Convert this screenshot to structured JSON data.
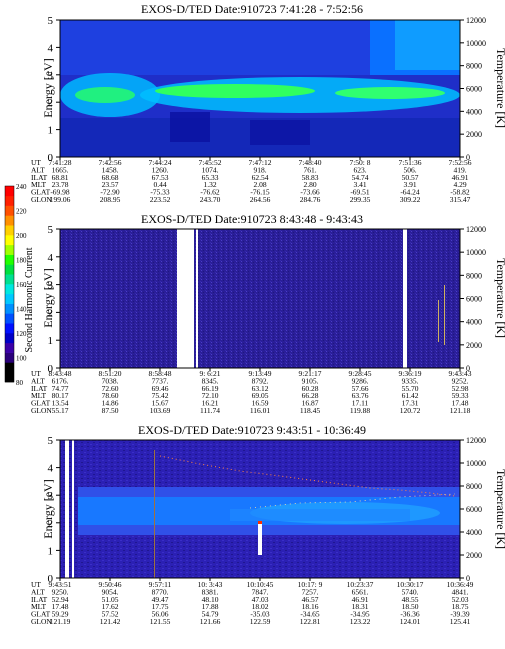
{
  "colors": {
    "colorbar": [
      "#000000",
      "#000000",
      "#2a007a",
      "#3a00a8",
      "#0000c8",
      "#0010ff",
      "#0050ff",
      "#0090ff",
      "#00c8ff",
      "#00e8e0",
      "#00e090",
      "#00e040",
      "#20ff00",
      "#a0ff00",
      "#ffff00",
      "#ffd000",
      "#ff9000",
      "#ff5000",
      "#ff2000",
      "#ff0000"
    ],
    "panel_background": "#2b1fb0",
    "mid_band": "#1b5cff",
    "bright_band": "#30ff60",
    "temperature_dots": "#ff8040"
  },
  "colorbar": {
    "label": "Second Harmonic Current",
    "ticks": [
      "240",
      "220",
      "200",
      "180",
      "160",
      "140",
      "120",
      "100",
      "80"
    ]
  },
  "row_labels": [
    "UT",
    "ALT",
    "ILAT",
    "MLT",
    "GLAT",
    "GLON"
  ],
  "chart_data": [
    {
      "type": "heatmap",
      "title": "EXOS-D/TED  Date:910723  7:41:28 - 7:52:56",
      "ylabel": "Energy [eV]",
      "y2label": "Temperature [K]",
      "ylim": [
        0,
        5
      ],
      "y2lim": [
        0,
        12000
      ],
      "yticks": [
        "0",
        "1",
        "2",
        "3",
        "4",
        "5"
      ],
      "y2ticks": [
        "0",
        "2000",
        "4000",
        "6000",
        "8000",
        "10000",
        "12000"
      ],
      "grid": false,
      "intense_band_energy_eV": [
        1.6,
        2.8
      ],
      "columns": [
        [
          "7:41:28",
          "1665.",
          "68.81",
          "23.78",
          "-69.98",
          "199.06"
        ],
        [
          "7:42:56",
          "1458.",
          "68.68",
          "23.57",
          "-72.90",
          "208.95"
        ],
        [
          "7:44:24",
          "1260.",
          "67.53",
          "0.44",
          "-75.33",
          "223.52"
        ],
        [
          "7:45:52",
          "1074.",
          "65.33",
          "1.32",
          "-76.62",
          "243.70"
        ],
        [
          "7:47:12",
          "918.",
          "62.54",
          "2.08",
          "-76.15",
          "264.56"
        ],
        [
          "7:48:40",
          "761.",
          "58.83",
          "2.80",
          "-73.66",
          "284.76"
        ],
        [
          "7:50: 8",
          "623.",
          "54.74",
          "3.41",
          "-69.51",
          "299.35"
        ],
        [
          "7:51:36",
          "506.",
          "50.57",
          "3.91",
          "-64.24",
          "309.22"
        ],
        [
          "7:52:56",
          "419.",
          "46.91",
          "4.29",
          "-58.82",
          "315.47"
        ]
      ]
    },
    {
      "type": "heatmap",
      "title": "EXOS-D/TED   Date:910723   8:43:48 - 9:43:43",
      "ylabel": "Energy [eV]",
      "y2label": "Temperature [K]",
      "ylim": [
        0,
        5
      ],
      "y2lim": [
        0,
        12000
      ],
      "yticks": [
        "0",
        "1",
        "2",
        "3",
        "4",
        "5"
      ],
      "y2ticks": [
        "0",
        "2000",
        "4000",
        "6000",
        "8000",
        "10000",
        "12000"
      ],
      "grid": false,
      "columns": [
        [
          "8:43:48",
          "6176.",
          "74.77",
          "80.17",
          "13.54",
          "55.17"
        ],
        [
          "8:51:20",
          "7038.",
          "72.60",
          "78.60",
          "14.86",
          "87.50"
        ],
        [
          "8:58:48",
          "7737.",
          "69.46",
          "75.42",
          "15.67",
          "103.69"
        ],
        [
          "9: 6:21",
          "8345.",
          "66.19",
          "72.10",
          "16.21",
          "111.74"
        ],
        [
          "9:13:49",
          "8792.",
          "63.12",
          "69.05",
          "16.59",
          "116.01"
        ],
        [
          "9:21:17",
          "9105.",
          "60.28",
          "66.28",
          "16.87",
          "118.45"
        ],
        [
          "9:28:45",
          "9286.",
          "57.66",
          "63.76",
          "17.11",
          "119.88"
        ],
        [
          "9:36:19",
          "9335.",
          "55.70",
          "61.42",
          "17.31",
          "120.72"
        ],
        [
          "9:43:43",
          "9252.",
          "52.98",
          "59.33",
          "17.48",
          "121.18"
        ]
      ]
    },
    {
      "type": "heatmap",
      "title": "EXOS-D/TED   Date:910723   9:43:51 - 10:36:49",
      "ylabel": "Energy [eV]",
      "y2label": "Temperature [K]",
      "ylim": [
        0,
        5
      ],
      "y2lim": [
        0,
        12000
      ],
      "yticks": [
        "0",
        "1",
        "2",
        "3",
        "4",
        "5"
      ],
      "y2ticks": [
        "0",
        "2000",
        "4000",
        "6000",
        "8000",
        "10000",
        "12000"
      ],
      "grid": false,
      "intense_band_energy_eV": [
        2.2,
        3.3
      ],
      "columns": [
        [
          "9:43:51",
          "9250.",
          "52.94",
          "17.48",
          "59.29",
          "121.19"
        ],
        [
          "9:50:46",
          "9054.",
          "51.05",
          "17.62",
          "57.52",
          "121.42"
        ],
        [
          "9:57:11",
          "8770.",
          "49.47",
          "17.75",
          "56.06",
          "121.55"
        ],
        [
          "10: 3:43",
          "8381.",
          "48.10",
          "17.88",
          "54.79",
          "121.66"
        ],
        [
          "10:10:45",
          "7847.",
          "47.03",
          "18.02",
          "-35.03",
          "122.59"
        ],
        [
          "10:17: 9",
          "7257.",
          "46.57",
          "18.16",
          "-34.65",
          "122.81"
        ],
        [
          "10:23:37",
          "6561.",
          "46.91",
          "18.31",
          "-34.95",
          "123.22"
        ],
        [
          "10:30:17",
          "5740.",
          "48.55",
          "18.50",
          "-36.36",
          "124.01"
        ],
        [
          "10:36:49",
          "4841.",
          "52.03",
          "18.75",
          "-39.39",
          "125.41"
        ]
      ]
    }
  ]
}
